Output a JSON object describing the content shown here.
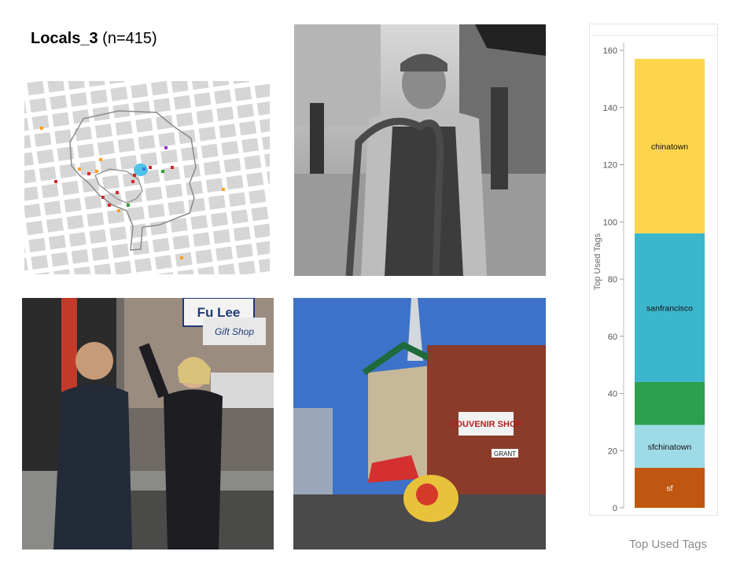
{
  "slide": {
    "title_bold": "Locals_3",
    "title_rest": " (n=415)"
  },
  "map": {
    "dot_colors": [
      "#d62728",
      "#ff9f1c",
      "#2ca02c",
      "#9b30d9",
      "#3a7bd5"
    ],
    "area_color": "#4fc3e8"
  },
  "photos": {
    "vendor": {
      "subject": "man pushing hand truck on Chinatown street"
    },
    "politicians": {
      "subject": "two people waving in front of shops",
      "sign_text": "Fu Lee",
      "sign_sub": "Gift Shop"
    },
    "street": {
      "subject": "Chinatown street with lion dance and pagoda building",
      "sign_text": "SOUVENIR SHOP",
      "street_sign": "GRANT"
    }
  },
  "chart_data": {
    "type": "bar",
    "stacked": true,
    "categories": [
      ""
    ],
    "ylabel": "Top Used Tags",
    "ylim": [
      0,
      160
    ],
    "yticks": [
      0,
      20,
      40,
      60,
      80,
      100,
      120,
      140,
      160
    ],
    "series": [
      {
        "name": "sf",
        "values": [
          14
        ],
        "color": "#c0560f",
        "label": "sf"
      },
      {
        "name": "sfchinatown",
        "values": [
          15
        ],
        "color": "#9fdbe6",
        "label": "sfchinatown"
      },
      {
        "name": "",
        "values": [
          15
        ],
        "color": "#2e9e4f",
        "label": ""
      },
      {
        "name": "sanfrancisco",
        "values": [
          52
        ],
        "color": "#3bb6cc",
        "label": "sanfrancisco"
      },
      {
        "name": "chinatown",
        "values": [
          61
        ],
        "color": "#fdd54c",
        "label": "chinatown"
      }
    ],
    "caption": "Top Used Tags"
  }
}
